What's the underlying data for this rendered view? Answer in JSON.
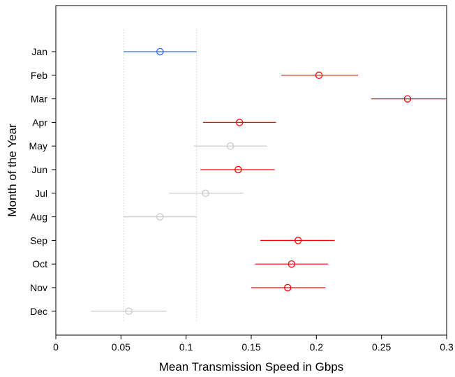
{
  "chart_data": {
    "type": "dot-interval",
    "title": "",
    "xlabel": "Mean Transmission Speed in Gbps",
    "ylabel": "Month of the Year",
    "xlim": [
      0,
      0.3
    ],
    "xticks": [
      0,
      0.05,
      0.1,
      0.15,
      0.2,
      0.25,
      0.3
    ],
    "xtick_labels": [
      "0",
      "0.05",
      "0.1",
      "0.15",
      "0.2",
      "0.25",
      "0.3"
    ],
    "reference_lines": [
      0.052,
      0.108
    ],
    "grid": false,
    "legend": "none",
    "colors": {
      "reference": "#3366ff",
      "significant": "#ff0000",
      "neutral": "#c8c8c8"
    },
    "rows": [
      {
        "label": "Jan",
        "mean": 0.08,
        "lower": 0.052,
        "upper": 0.108,
        "group": "reference"
      },
      {
        "label": "Feb",
        "mean": 0.202,
        "lower": 0.173,
        "upper": 0.232,
        "group": "significant"
      },
      {
        "label": "Mar",
        "mean": 0.27,
        "lower": 0.242,
        "upper": 0.3,
        "group": "significant"
      },
      {
        "label": "Apr",
        "mean": 0.141,
        "lower": 0.113,
        "upper": 0.169,
        "group": "significant"
      },
      {
        "label": "May",
        "mean": 0.134,
        "lower": 0.106,
        "upper": 0.162,
        "group": "neutral"
      },
      {
        "label": "Jun",
        "mean": 0.14,
        "lower": 0.111,
        "upper": 0.168,
        "group": "significant"
      },
      {
        "label": "Jul",
        "mean": 0.115,
        "lower": 0.087,
        "upper": 0.144,
        "group": "neutral"
      },
      {
        "label": "Aug",
        "mean": 0.08,
        "lower": 0.052,
        "upper": 0.108,
        "group": "neutral"
      },
      {
        "label": "Sep",
        "mean": 0.186,
        "lower": 0.157,
        "upper": 0.214,
        "group": "significant"
      },
      {
        "label": "Oct",
        "mean": 0.181,
        "lower": 0.153,
        "upper": 0.209,
        "group": "significant"
      },
      {
        "label": "Nov",
        "mean": 0.178,
        "lower": 0.15,
        "upper": 0.207,
        "group": "significant"
      },
      {
        "label": "Dec",
        "mean": 0.056,
        "lower": 0.027,
        "upper": 0.085,
        "group": "neutral"
      }
    ]
  }
}
